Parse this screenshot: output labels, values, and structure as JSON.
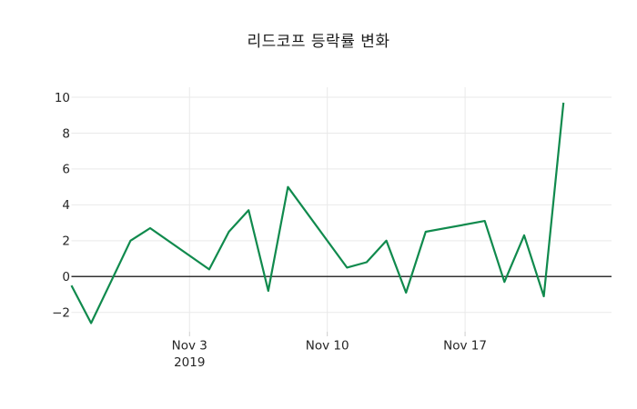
{
  "title": {
    "text": "리드코프 등락률 변화"
  },
  "colors": {
    "background": "#ffffff",
    "line": "#108a4d",
    "grid": "#e9e9e9",
    "zero_line": "#333333",
    "tick_mark": "#cccccc",
    "tick_label": "#262626",
    "title": "#1a1a1a"
  },
  "chart_data": {
    "type": "line",
    "title": "리드코프 등락률 변화",
    "xlabel": "",
    "ylabel": "",
    "points": [
      {
        "date": "Oct 28",
        "day": 0,
        "value": -0.5
      },
      {
        "date": "Oct 29",
        "day": 1,
        "value": -2.6
      },
      {
        "date": "Oct 30",
        "day": 2,
        "value": -0.3
      },
      {
        "date": "Oct 31",
        "day": 3,
        "value": 2.0
      },
      {
        "date": "Nov 1",
        "day": 4,
        "value": 2.7
      },
      {
        "date": "Nov 4",
        "day": 7,
        "value": 0.4
      },
      {
        "date": "Nov 5",
        "day": 8,
        "value": 2.5
      },
      {
        "date": "Nov 6",
        "day": 9,
        "value": 3.7
      },
      {
        "date": "Nov 7",
        "day": 10,
        "value": -0.8
      },
      {
        "date": "Nov 8",
        "day": 11,
        "value": 5.0
      },
      {
        "date": "Nov 11",
        "day": 14,
        "value": 0.5
      },
      {
        "date": "Nov 12",
        "day": 15,
        "value": 0.8
      },
      {
        "date": "Nov 13",
        "day": 16,
        "value": 2.0
      },
      {
        "date": "Nov 14",
        "day": 17,
        "value": -0.9
      },
      {
        "date": "Nov 15",
        "day": 18,
        "value": 2.5
      },
      {
        "date": "Nov 18",
        "day": 21,
        "value": 3.1
      },
      {
        "date": "Nov 19",
        "day": 22,
        "value": -0.3
      },
      {
        "date": "Nov 20",
        "day": 23,
        "value": 2.3
      },
      {
        "date": "Nov 21",
        "day": 24,
        "value": -1.1
      },
      {
        "date": "Nov 22",
        "day": 25,
        "value": 9.7
      }
    ],
    "y_ticks": [
      -2,
      0,
      2,
      4,
      6,
      8,
      10
    ],
    "x_ticks": [
      {
        "label": "Nov 3",
        "sublabel": "2019",
        "day": 6
      },
      {
        "label": "Nov 10",
        "sublabel": "",
        "day": 13
      },
      {
        "label": "Nov 17",
        "sublabel": "",
        "day": 20
      }
    ],
    "ylim": [
      -3.08,
      10.56
    ],
    "xlim": [
      0,
      27.44
    ],
    "grid": true,
    "legend": false,
    "zero_line": true
  }
}
